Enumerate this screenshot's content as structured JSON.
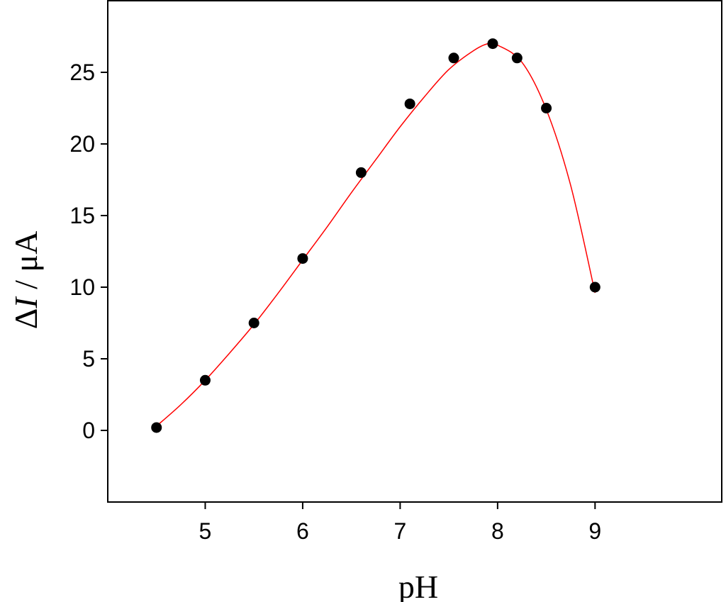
{
  "chart_data": {
    "type": "scatter",
    "title": "",
    "xlabel": "pH",
    "ylabel_parts": [
      "Δ",
      "I",
      " / μA"
    ],
    "xlim": [
      4.0,
      10.3
    ],
    "ylim": [
      -5,
      30
    ],
    "x_ticks": [
      5,
      6,
      7,
      8,
      9
    ],
    "y_ticks": [
      0,
      5,
      10,
      15,
      20,
      25
    ],
    "x_tick_labels": [
      "5",
      "6",
      "7",
      "8",
      "9"
    ],
    "y_tick_labels": [
      "0",
      "5",
      "10",
      "15",
      "20",
      "25"
    ],
    "grid": false,
    "series": [
      {
        "marker_color": "#000000",
        "x": [
          4.5,
          5.0,
          5.5,
          6.0,
          6.6,
          7.1,
          7.55,
          7.95,
          8.2,
          8.5,
          9.0
        ],
        "y": [
          0.2,
          3.5,
          7.5,
          12.0,
          18.0,
          22.8,
          26.0,
          27.0,
          26.0,
          22.5,
          10.0
        ]
      }
    ],
    "fit_curve": {
      "color": "#ff0000",
      "x": [
        4.5,
        4.75,
        5.0,
        5.25,
        5.5,
        5.75,
        6.0,
        6.25,
        6.5,
        6.75,
        7.0,
        7.25,
        7.5,
        7.75,
        7.9,
        8.0,
        8.25,
        8.5,
        8.75,
        9.0
      ],
      "y": [
        0.3,
        1.8,
        3.5,
        5.4,
        7.4,
        9.6,
        11.9,
        14.2,
        16.6,
        18.9,
        21.2,
        23.3,
        25.2,
        26.5,
        27.0,
        26.9,
        25.7,
        22.4,
        17.1,
        9.6
      ]
    }
  }
}
